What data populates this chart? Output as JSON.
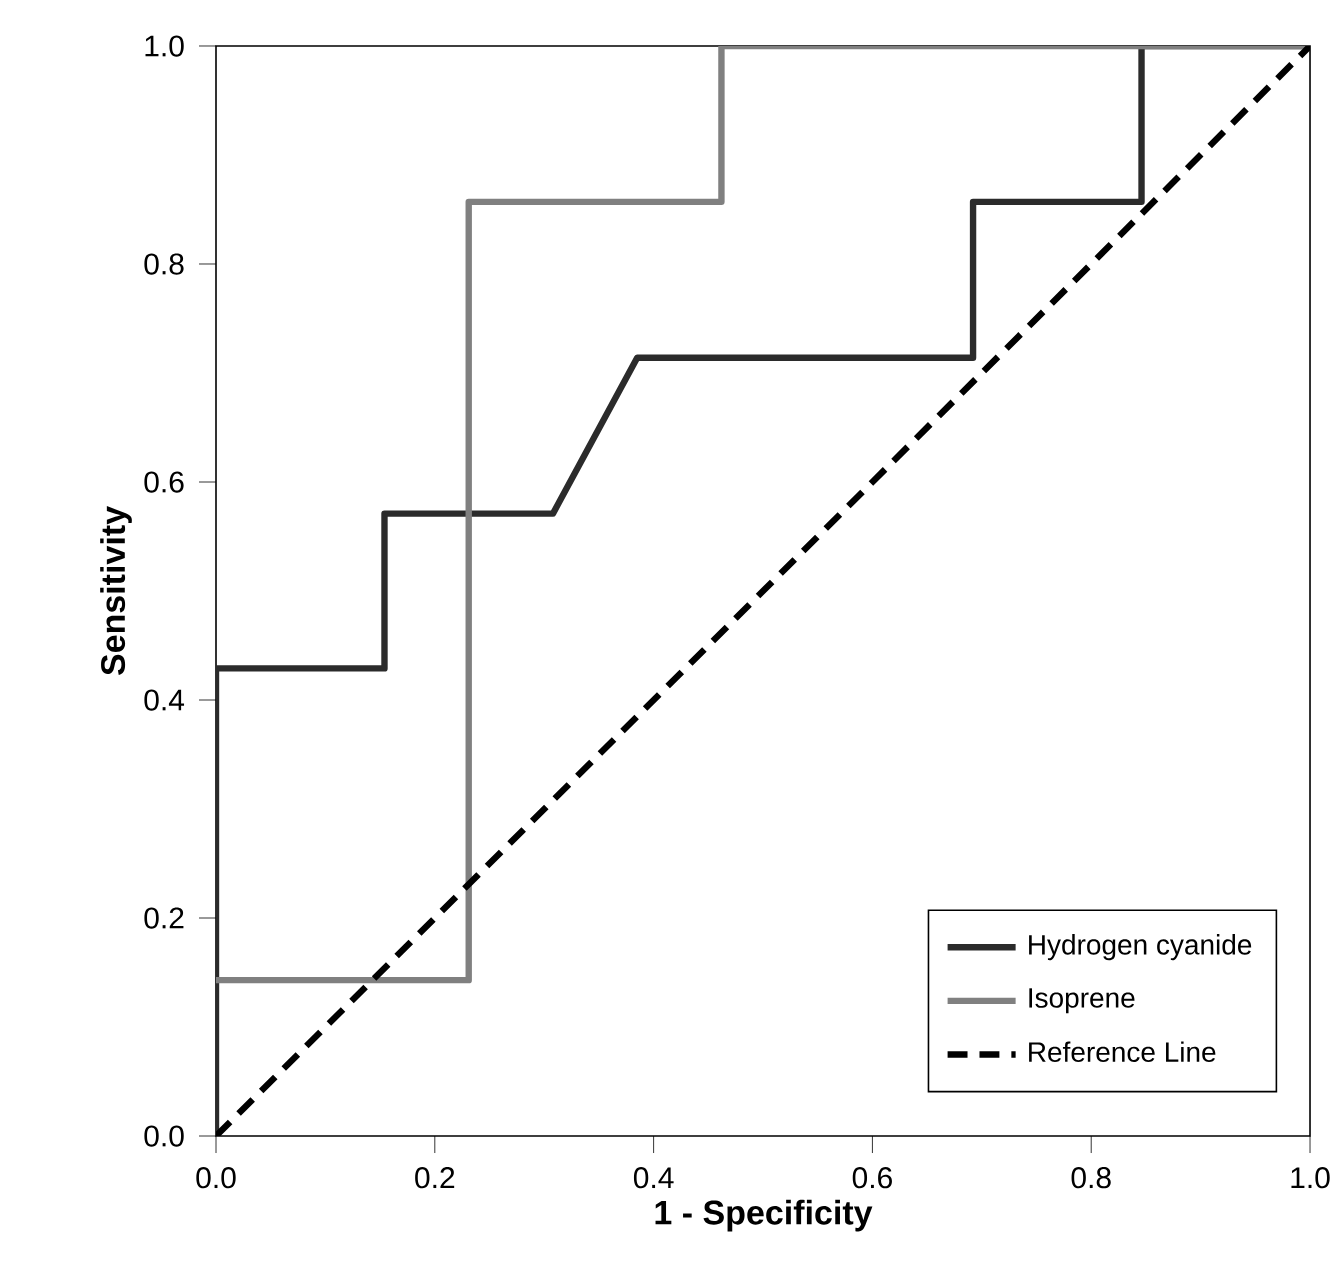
{
  "chart_data": {
    "type": "line",
    "xlabel": "1 - Specificity",
    "ylabel": "Sensitivity",
    "xlim": [
      0,
      1
    ],
    "ylim": [
      0,
      1
    ],
    "xticks": [
      {
        "value": 0,
        "label": "0.0"
      },
      {
        "value": 0.2,
        "label": "0.2"
      },
      {
        "value": 0.4,
        "label": "0.4"
      },
      {
        "value": 0.6,
        "label": "0.6"
      },
      {
        "value": 0.8,
        "label": "0.8"
      },
      {
        "value": 1,
        "label": "1.0"
      }
    ],
    "yticks": [
      {
        "value": 0,
        "label": "0.0"
      },
      {
        "value": 0.2,
        "label": "0.2"
      },
      {
        "value": 0.4,
        "label": "0.4"
      },
      {
        "value": 0.6,
        "label": "0.6"
      },
      {
        "value": 0.8,
        "label": "0.8"
      },
      {
        "value": 1,
        "label": "1.0"
      }
    ],
    "grid": false,
    "legend": "bottom right",
    "marker": "none",
    "series": [
      {
        "name": "Hydrogen cyanide",
        "color": "#2b2b2b",
        "line_style": "solid",
        "x": [
          0,
          0,
          0.154,
          0.154,
          0.308,
          0.385,
          0.692,
          0.692,
          0.846,
          0.846,
          1
        ],
        "values": [
          0,
          0.429,
          0.429,
          0.571,
          0.571,
          0.714,
          0.714,
          0.857,
          0.857,
          1,
          1
        ]
      },
      {
        "name": "Isoprene",
        "color": "#808080",
        "line_style": "solid",
        "x": [
          0,
          0.231,
          0.231,
          0.462,
          0.462,
          1
        ],
        "values": [
          0.143,
          0.143,
          0.857,
          0.857,
          1,
          1
        ]
      },
      {
        "name": "Reference Line",
        "color": "#000000",
        "line_style": "dashed",
        "x": [
          0,
          1
        ],
        "values": [
          0,
          1
        ]
      }
    ]
  }
}
